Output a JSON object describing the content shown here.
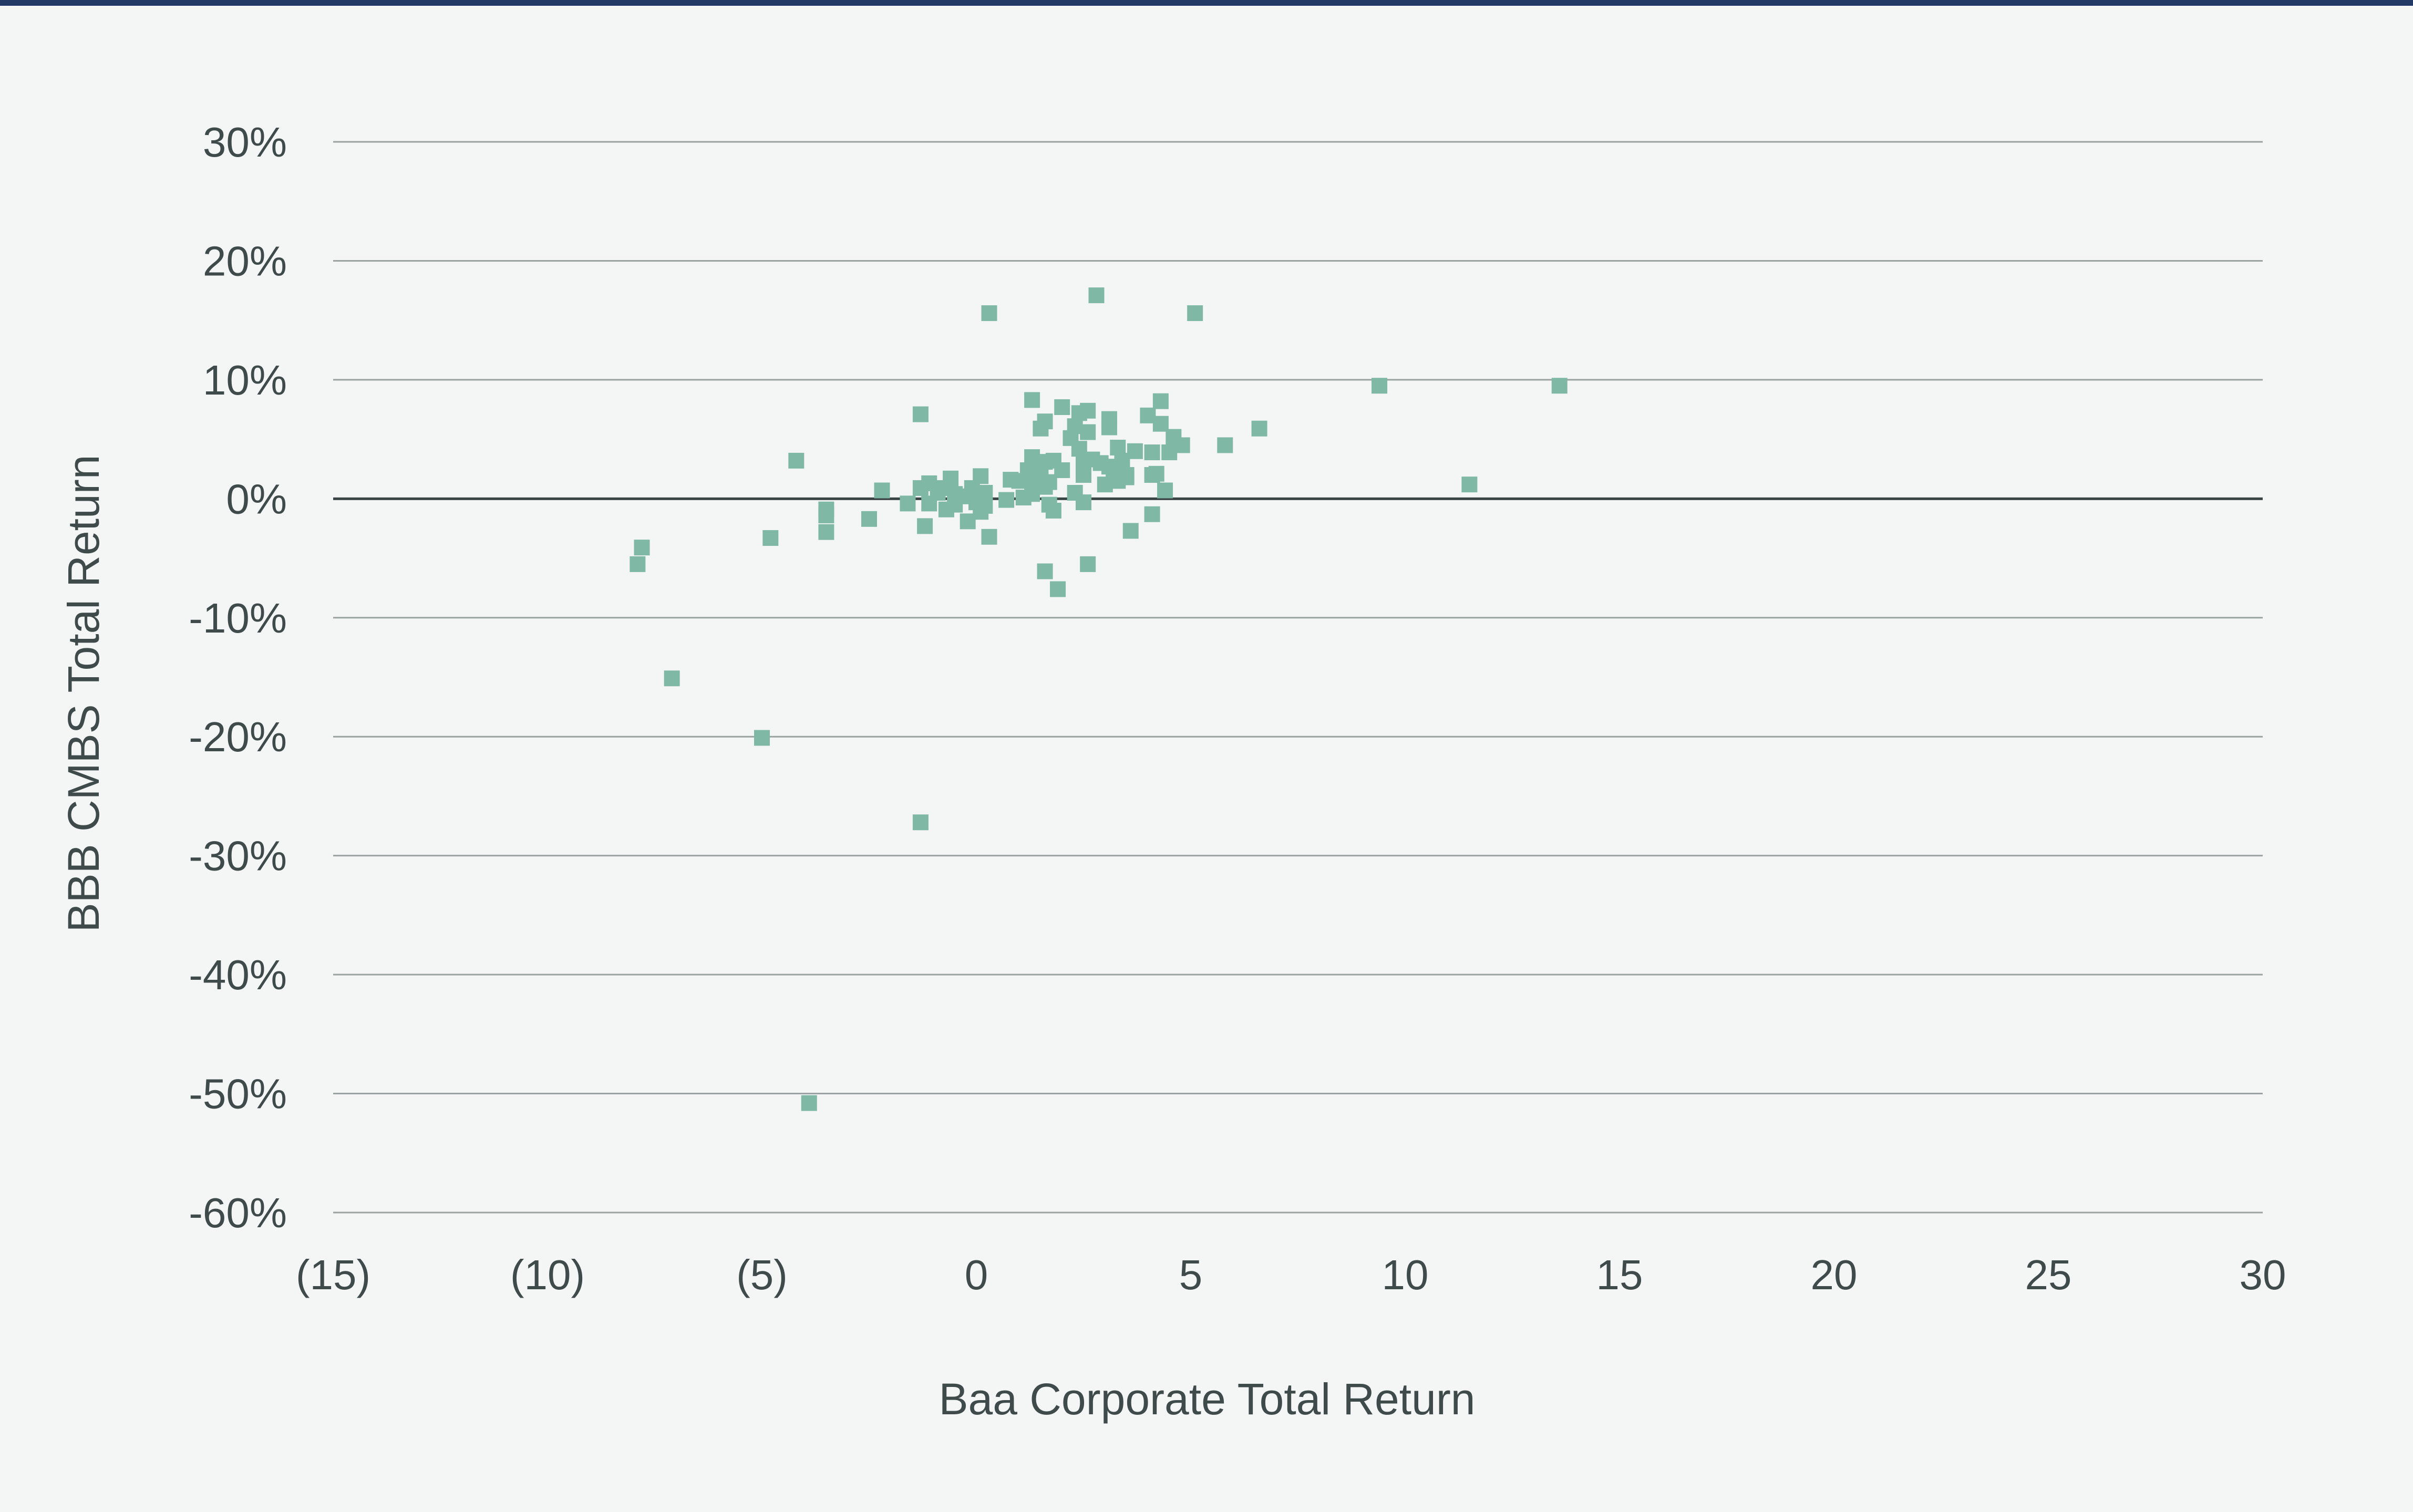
{
  "colors": {
    "background": "#f4f6f5",
    "top_rule": "#233a66",
    "gridline": "#9aa3a1",
    "zero_line": "#3b4444",
    "marker": "#7fb9a5",
    "text": "#3f4a4a"
  },
  "chart_data": {
    "type": "scatter",
    "xlabel": "Baa Corporate Total Return",
    "ylabel": "BBB CMBS Total Return",
    "xlim": [
      -15,
      30
    ],
    "ylim": [
      -60,
      30
    ],
    "xticks": [
      -15,
      -10,
      -5,
      0,
      5,
      10,
      15,
      20,
      25,
      30
    ],
    "xtick_labels": [
      "(15)",
      "(10)",
      "(5)",
      "0",
      "5",
      "10",
      "15",
      "20",
      "25",
      "30"
    ],
    "yticks": [
      30,
      20,
      10,
      0,
      -10,
      -20,
      -30,
      -40,
      -50,
      -60
    ],
    "ytick_labels": [
      "30%",
      "20%",
      "10%",
      "0%",
      "-10%",
      "-20%",
      "-30%",
      "-40%",
      "-50%",
      "-60%"
    ],
    "grid": "horizontal",
    "marker": "square",
    "points": [
      {
        "x": -7.9,
        "y": -5.5
      },
      {
        "x": -7.8,
        "y": -4.1
      },
      {
        "x": -7.1,
        "y": -15.1
      },
      {
        "x": -5.0,
        "y": -20.1
      },
      {
        "x": -4.8,
        "y": -3.3
      },
      {
        "x": -4.2,
        "y": 3.2
      },
      {
        "x": -3.9,
        "y": -50.8
      },
      {
        "x": -3.5,
        "y": -0.9
      },
      {
        "x": -3.5,
        "y": -1.4
      },
      {
        "x": -3.5,
        "y": -2.8
      },
      {
        "x": -2.5,
        "y": -1.7
      },
      {
        "x": -2.2,
        "y": 0.7
      },
      {
        "x": -1.6,
        "y": -0.4
      },
      {
        "x": -1.3,
        "y": 7.1
      },
      {
        "x": -1.3,
        "y": -27.2
      },
      {
        "x": -1.3,
        "y": 0.9
      },
      {
        "x": -1.2,
        "y": -2.3
      },
      {
        "x": -1.1,
        "y": 1.3
      },
      {
        "x": -1.1,
        "y": -0.4
      },
      {
        "x": -0.9,
        "y": 0.5
      },
      {
        "x": -0.8,
        "y": 0.9
      },
      {
        "x": -0.7,
        "y": -0.9
      },
      {
        "x": -0.6,
        "y": 1.7
      },
      {
        "x": -0.5,
        "y": -0.5
      },
      {
        "x": -0.5,
        "y": 0.4
      },
      {
        "x": -0.3,
        "y": 0.2
      },
      {
        "x": -0.2,
        "y": -1.9
      },
      {
        "x": -0.1,
        "y": 0.9
      },
      {
        "x": 0.0,
        "y": 0.2
      },
      {
        "x": 0.0,
        "y": -0.3
      },
      {
        "x": 0.1,
        "y": 1.9
      },
      {
        "x": 0.1,
        "y": -1.1
      },
      {
        "x": 0.2,
        "y": 0.5
      },
      {
        "x": 0.2,
        "y": -0.6
      },
      {
        "x": 0.3,
        "y": 15.6
      },
      {
        "x": 0.3,
        "y": -3.2
      },
      {
        "x": 0.7,
        "y": -0.1
      },
      {
        "x": 0.8,
        "y": 1.6
      },
      {
        "x": 1.0,
        "y": 1.5
      },
      {
        "x": 1.1,
        "y": 0.1
      },
      {
        "x": 1.2,
        "y": 2.4
      },
      {
        "x": 1.3,
        "y": 8.3
      },
      {
        "x": 1.3,
        "y": 3.5
      },
      {
        "x": 1.3,
        "y": 1.6
      },
      {
        "x": 1.3,
        "y": 0.4
      },
      {
        "x": 1.4,
        "y": 2.7
      },
      {
        "x": 1.4,
        "y": 1.2
      },
      {
        "x": 1.5,
        "y": 5.9
      },
      {
        "x": 1.5,
        "y": 2.0
      },
      {
        "x": 1.6,
        "y": 6.5
      },
      {
        "x": 1.6,
        "y": 3.1
      },
      {
        "x": 1.6,
        "y": 1.0
      },
      {
        "x": 1.6,
        "y": -6.1
      },
      {
        "x": 1.7,
        "y": 1.4
      },
      {
        "x": 1.7,
        "y": -0.5
      },
      {
        "x": 1.8,
        "y": 3.2
      },
      {
        "x": 1.8,
        "y": -1.0
      },
      {
        "x": 1.9,
        "y": -7.6
      },
      {
        "x": 2.0,
        "y": 7.7
      },
      {
        "x": 2.0,
        "y": 2.4
      },
      {
        "x": 2.2,
        "y": 5.1
      },
      {
        "x": 2.3,
        "y": 0.5
      },
      {
        "x": 2.3,
        "y": 6.1
      },
      {
        "x": 2.4,
        "y": 4.2
      },
      {
        "x": 2.4,
        "y": 7.2
      },
      {
        "x": 2.5,
        "y": 3.1
      },
      {
        "x": 2.5,
        "y": 2.0
      },
      {
        "x": 2.5,
        "y": -0.3
      },
      {
        "x": 2.6,
        "y": 7.4
      },
      {
        "x": 2.6,
        "y": 5.6
      },
      {
        "x": 2.6,
        "y": -5.5
      },
      {
        "x": 2.7,
        "y": 3.3
      },
      {
        "x": 2.8,
        "y": 17.1
      },
      {
        "x": 2.9,
        "y": 3.0
      },
      {
        "x": 3.0,
        "y": 1.2
      },
      {
        "x": 3.1,
        "y": 6.7
      },
      {
        "x": 3.1,
        "y": 6.0
      },
      {
        "x": 3.1,
        "y": 2.7
      },
      {
        "x": 3.2,
        "y": 2.4
      },
      {
        "x": 3.3,
        "y": 4.3
      },
      {
        "x": 3.3,
        "y": 1.5
      },
      {
        "x": 3.4,
        "y": 3.2
      },
      {
        "x": 3.5,
        "y": 2.0
      },
      {
        "x": 3.5,
        "y": 1.8
      },
      {
        "x": 3.6,
        "y": -2.7
      },
      {
        "x": 3.7,
        "y": 4.0
      },
      {
        "x": 4.0,
        "y": 7.0
      },
      {
        "x": 4.1,
        "y": 3.9
      },
      {
        "x": 4.1,
        "y": 2.0
      },
      {
        "x": 4.1,
        "y": -1.3
      },
      {
        "x": 4.2,
        "y": 2.1
      },
      {
        "x": 4.3,
        "y": 8.2
      },
      {
        "x": 4.3,
        "y": 6.3
      },
      {
        "x": 4.4,
        "y": 0.7
      },
      {
        "x": 4.5,
        "y": 3.9
      },
      {
        "x": 4.6,
        "y": 5.2
      },
      {
        "x": 4.8,
        "y": 4.5
      },
      {
        "x": 5.1,
        "y": 15.6
      },
      {
        "x": 5.8,
        "y": 4.5
      },
      {
        "x": 6.6,
        "y": 5.9
      },
      {
        "x": 9.4,
        "y": 9.5
      },
      {
        "x": 11.5,
        "y": 1.2
      },
      {
        "x": 13.6,
        "y": 9.5
      }
    ]
  }
}
